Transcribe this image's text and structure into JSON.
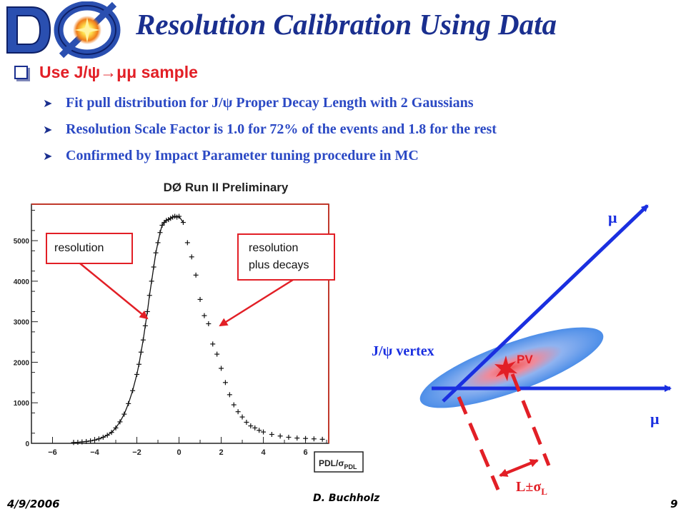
{
  "slide": {
    "title": "Resolution Calibration Using Data",
    "headline": "Use J/ψ→μμ sample",
    "bullets": [
      "Fit pull distribution for J/ψ Proper Decay Length with 2 Gaussians",
      "Resolution Scale Factor is 1.0 for 72% of the events and 1.8 for the rest",
      "Confirmed by Impact Parameter tuning procedure in MC"
    ],
    "footer": {
      "date": "4/9/2006",
      "author": "D. Buchholz",
      "page": "9"
    }
  },
  "chart_data": {
    "type": "scatter",
    "title": "DØ Run II Preliminary",
    "xlabel": "PDL/σ",
    "xlabel_sub": "PDL",
    "xlim": [
      -7,
      7.1
    ],
    "ylim": [
      0,
      5900
    ],
    "xticks": [
      -6,
      -4,
      -2,
      0,
      2,
      4,
      6
    ],
    "yticks": [
      0,
      1000,
      2000,
      3000,
      4000,
      5000
    ],
    "grid": false,
    "series": [
      {
        "x": [
          -5.0,
          -4.8,
          -4.6,
          -4.4,
          -4.2,
          -4.0,
          -3.8,
          -3.6,
          -3.4,
          -3.2,
          -3.0,
          -2.8,
          -2.6,
          -2.4,
          -2.2,
          -2.0,
          -1.9,
          -1.8,
          -1.7,
          -1.6,
          -1.5,
          -1.4,
          -1.3,
          -1.2,
          -1.1,
          -1.0,
          -0.9,
          -0.8,
          -0.7,
          -0.6,
          -0.5,
          -0.4,
          -0.3,
          -0.2,
          -0.1,
          0.0,
          0.2,
          0.4,
          0.6,
          0.8,
          1.0,
          1.2,
          1.4,
          1.6,
          1.8,
          2.0,
          2.2,
          2.4,
          2.6,
          2.8,
          3.0,
          3.2,
          3.4,
          3.6,
          3.8,
          4.0,
          4.4,
          4.8,
          5.2,
          5.6,
          6.0,
          6.4,
          6.8
        ],
        "y": [
          20,
          25,
          35,
          45,
          60,
          80,
          110,
          150,
          200,
          270,
          380,
          530,
          720,
          980,
          1300,
          1700,
          1950,
          2250,
          2550,
          2900,
          3250,
          3650,
          4000,
          4350,
          4700,
          4950,
          5200,
          5380,
          5450,
          5500,
          5520,
          5550,
          5580,
          5600,
          5580,
          5600,
          5450,
          4950,
          4600,
          4150,
          3550,
          3150,
          2950,
          2450,
          2200,
          1850,
          1500,
          1200,
          950,
          780,
          650,
          520,
          430,
          380,
          320,
          280,
          220,
          180,
          150,
          130,
          120,
          110,
          100
        ]
      }
    ],
    "annotations": [
      "resolution",
      "resolution\nplus decays"
    ]
  },
  "diagram": {
    "mu_top": "μ",
    "mu_right": "μ",
    "vertex_label": "J/ψ vertex",
    "pv_label": "PV",
    "length_label": "L±σ",
    "length_sub": "L"
  }
}
